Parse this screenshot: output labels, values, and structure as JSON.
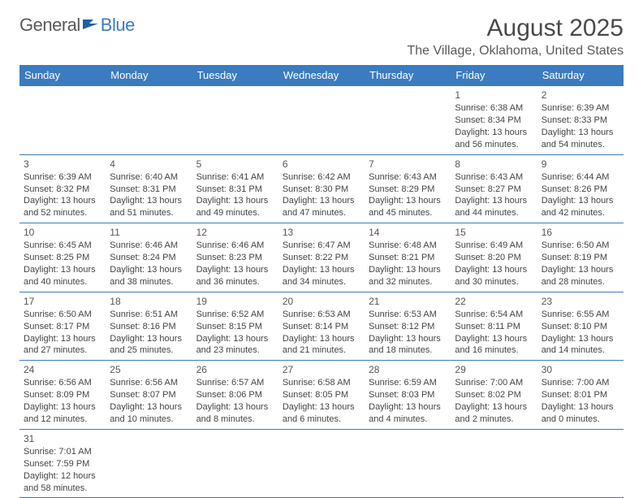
{
  "logo": {
    "general": "General",
    "blue": "Blue"
  },
  "title": "August 2025",
  "location": "The Village, Oklahoma, United States",
  "colors": {
    "header_bg": "#3b7bbf",
    "header_text": "#ffffff",
    "border": "#3b7bbf",
    "body_text": "#444444",
    "title_text": "#4a4a4a",
    "background": "#ffffff"
  },
  "dayHeaders": [
    "Sunday",
    "Monday",
    "Tuesday",
    "Wednesday",
    "Thursday",
    "Friday",
    "Saturday"
  ],
  "weeks": [
    [
      null,
      null,
      null,
      null,
      null,
      {
        "n": "1",
        "sunrise": "Sunrise: 6:38 AM",
        "sunset": "Sunset: 8:34 PM",
        "daylight": "Daylight: 13 hours and 56 minutes."
      },
      {
        "n": "2",
        "sunrise": "Sunrise: 6:39 AM",
        "sunset": "Sunset: 8:33 PM",
        "daylight": "Daylight: 13 hours and 54 minutes."
      }
    ],
    [
      {
        "n": "3",
        "sunrise": "Sunrise: 6:39 AM",
        "sunset": "Sunset: 8:32 PM",
        "daylight": "Daylight: 13 hours and 52 minutes."
      },
      {
        "n": "4",
        "sunrise": "Sunrise: 6:40 AM",
        "sunset": "Sunset: 8:31 PM",
        "daylight": "Daylight: 13 hours and 51 minutes."
      },
      {
        "n": "5",
        "sunrise": "Sunrise: 6:41 AM",
        "sunset": "Sunset: 8:31 PM",
        "daylight": "Daylight: 13 hours and 49 minutes."
      },
      {
        "n": "6",
        "sunrise": "Sunrise: 6:42 AM",
        "sunset": "Sunset: 8:30 PM",
        "daylight": "Daylight: 13 hours and 47 minutes."
      },
      {
        "n": "7",
        "sunrise": "Sunrise: 6:43 AM",
        "sunset": "Sunset: 8:29 PM",
        "daylight": "Daylight: 13 hours and 45 minutes."
      },
      {
        "n": "8",
        "sunrise": "Sunrise: 6:43 AM",
        "sunset": "Sunset: 8:27 PM",
        "daylight": "Daylight: 13 hours and 44 minutes."
      },
      {
        "n": "9",
        "sunrise": "Sunrise: 6:44 AM",
        "sunset": "Sunset: 8:26 PM",
        "daylight": "Daylight: 13 hours and 42 minutes."
      }
    ],
    [
      {
        "n": "10",
        "sunrise": "Sunrise: 6:45 AM",
        "sunset": "Sunset: 8:25 PM",
        "daylight": "Daylight: 13 hours and 40 minutes."
      },
      {
        "n": "11",
        "sunrise": "Sunrise: 6:46 AM",
        "sunset": "Sunset: 8:24 PM",
        "daylight": "Daylight: 13 hours and 38 minutes."
      },
      {
        "n": "12",
        "sunrise": "Sunrise: 6:46 AM",
        "sunset": "Sunset: 8:23 PM",
        "daylight": "Daylight: 13 hours and 36 minutes."
      },
      {
        "n": "13",
        "sunrise": "Sunrise: 6:47 AM",
        "sunset": "Sunset: 8:22 PM",
        "daylight": "Daylight: 13 hours and 34 minutes."
      },
      {
        "n": "14",
        "sunrise": "Sunrise: 6:48 AM",
        "sunset": "Sunset: 8:21 PM",
        "daylight": "Daylight: 13 hours and 32 minutes."
      },
      {
        "n": "15",
        "sunrise": "Sunrise: 6:49 AM",
        "sunset": "Sunset: 8:20 PM",
        "daylight": "Daylight: 13 hours and 30 minutes."
      },
      {
        "n": "16",
        "sunrise": "Sunrise: 6:50 AM",
        "sunset": "Sunset: 8:19 PM",
        "daylight": "Daylight: 13 hours and 28 minutes."
      }
    ],
    [
      {
        "n": "17",
        "sunrise": "Sunrise: 6:50 AM",
        "sunset": "Sunset: 8:17 PM",
        "daylight": "Daylight: 13 hours and 27 minutes."
      },
      {
        "n": "18",
        "sunrise": "Sunrise: 6:51 AM",
        "sunset": "Sunset: 8:16 PM",
        "daylight": "Daylight: 13 hours and 25 minutes."
      },
      {
        "n": "19",
        "sunrise": "Sunrise: 6:52 AM",
        "sunset": "Sunset: 8:15 PM",
        "daylight": "Daylight: 13 hours and 23 minutes."
      },
      {
        "n": "20",
        "sunrise": "Sunrise: 6:53 AM",
        "sunset": "Sunset: 8:14 PM",
        "daylight": "Daylight: 13 hours and 21 minutes."
      },
      {
        "n": "21",
        "sunrise": "Sunrise: 6:53 AM",
        "sunset": "Sunset: 8:12 PM",
        "daylight": "Daylight: 13 hours and 18 minutes."
      },
      {
        "n": "22",
        "sunrise": "Sunrise: 6:54 AM",
        "sunset": "Sunset: 8:11 PM",
        "daylight": "Daylight: 13 hours and 16 minutes."
      },
      {
        "n": "23",
        "sunrise": "Sunrise: 6:55 AM",
        "sunset": "Sunset: 8:10 PM",
        "daylight": "Daylight: 13 hours and 14 minutes."
      }
    ],
    [
      {
        "n": "24",
        "sunrise": "Sunrise: 6:56 AM",
        "sunset": "Sunset: 8:09 PM",
        "daylight": "Daylight: 13 hours and 12 minutes."
      },
      {
        "n": "25",
        "sunrise": "Sunrise: 6:56 AM",
        "sunset": "Sunset: 8:07 PM",
        "daylight": "Daylight: 13 hours and 10 minutes."
      },
      {
        "n": "26",
        "sunrise": "Sunrise: 6:57 AM",
        "sunset": "Sunset: 8:06 PM",
        "daylight": "Daylight: 13 hours and 8 minutes."
      },
      {
        "n": "27",
        "sunrise": "Sunrise: 6:58 AM",
        "sunset": "Sunset: 8:05 PM",
        "daylight": "Daylight: 13 hours and 6 minutes."
      },
      {
        "n": "28",
        "sunrise": "Sunrise: 6:59 AM",
        "sunset": "Sunset: 8:03 PM",
        "daylight": "Daylight: 13 hours and 4 minutes."
      },
      {
        "n": "29",
        "sunrise": "Sunrise: 7:00 AM",
        "sunset": "Sunset: 8:02 PM",
        "daylight": "Daylight: 13 hours and 2 minutes."
      },
      {
        "n": "30",
        "sunrise": "Sunrise: 7:00 AM",
        "sunset": "Sunset: 8:01 PM",
        "daylight": "Daylight: 13 hours and 0 minutes."
      }
    ],
    [
      {
        "n": "31",
        "sunrise": "Sunrise: 7:01 AM",
        "sunset": "Sunset: 7:59 PM",
        "daylight": "Daylight: 12 hours and 58 minutes."
      },
      null,
      null,
      null,
      null,
      null,
      null
    ]
  ]
}
